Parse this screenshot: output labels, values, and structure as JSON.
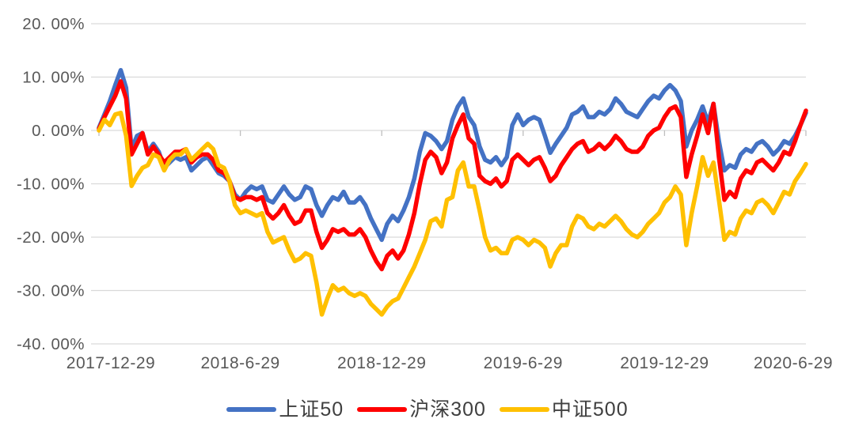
{
  "chart_data": {
    "type": "line",
    "title": "",
    "description": "Cumulative return comparison of three Chinese stock indices from 2017-12-29 to 2020-6-29, weekly sampled values in percent",
    "x_axis": {
      "tick_labels": [
        "2017-12-29",
        "2018-6-29",
        "2018-12-29",
        "2019-6-29",
        "2019-12-29",
        "2020-6-29"
      ],
      "sampling": "weekly points, week 0 = 2017-12-29 through week 130 = 2020-6-29"
    },
    "y_axis": {
      "min": -40,
      "max": 20,
      "step": 10,
      "unit": "%",
      "tick_labels": [
        "20. 00%",
        "10. 00%",
        "0. 00%",
        "-10. 00%",
        "-20. 00%",
        "-30. 00%",
        "-40. 00%"
      ]
    },
    "grid": "horizontal",
    "legend_position": "bottom",
    "colors": {
      "background": "#FFFFFF",
      "gridline": "#D9D9D9",
      "tick": "#BFBFBF",
      "axis_text": "#595959",
      "legend_text": "#3F3F3F"
    },
    "series": [
      {
        "name": "上证50",
        "color": "#4472C4",
        "values": [
          0.5,
          3,
          5.5,
          8.5,
          11.3,
          8,
          -3.5,
          -1,
          -0.5,
          -4,
          -2.5,
          -4,
          -7,
          -6,
          -5,
          -5.5,
          -5,
          -7.5,
          -6.5,
          -5.5,
          -5,
          -6.5,
          -8,
          -8.5,
          -9.5,
          -12,
          -13,
          -11.5,
          -10.5,
          -11,
          -10.5,
          -13,
          -13.5,
          -12,
          -10.5,
          -12,
          -13,
          -12.5,
          -10.5,
          -11,
          -14,
          -16,
          -14,
          -12.5,
          -13,
          -11.5,
          -13.5,
          -13.5,
          -12.5,
          -14,
          -16.5,
          -18.5,
          -20.5,
          -17.5,
          -16,
          -17,
          -15,
          -12.5,
          -9,
          -4,
          -0.5,
          -1,
          -2,
          -3.5,
          -2,
          2,
          4.5,
          6,
          2.5,
          1,
          -3,
          -5.5,
          -6,
          -5,
          -6.5,
          -5,
          1,
          3,
          1,
          2,
          2.5,
          2,
          -1,
          -4.2,
          -2.5,
          -1,
          0.5,
          3,
          3.5,
          4.5,
          2.5,
          2.5,
          3.5,
          3,
          4,
          6,
          5,
          3.5,
          3,
          2.5,
          4,
          5.5,
          6.5,
          6,
          7.5,
          8.5,
          7.5,
          5.5,
          -3,
          0,
          2,
          4.5,
          1.5,
          5,
          -2,
          -7.5,
          -6.5,
          -7,
          -4.5,
          -3.5,
          -4,
          -2.5,
          -2,
          -3,
          -4.5,
          -3.5,
          -2,
          -2.5,
          -1,
          1,
          3.3
        ]
      },
      {
        "name": "沪深300",
        "color": "#FF0000",
        "values": [
          0.3,
          2.5,
          4.5,
          6.5,
          9.2,
          6,
          -4.5,
          -2.5,
          -0.5,
          -4.5,
          -3,
          -4.5,
          -6,
          -5,
          -4,
          -4,
          -3.5,
          -6,
          -5,
          -4.5,
          -4.5,
          -5.5,
          -7.5,
          -8,
          -9.5,
          -12.5,
          -13,
          -12.5,
          -12.5,
          -13,
          -12.5,
          -15.5,
          -16.5,
          -15.5,
          -14,
          -16,
          -17.5,
          -17,
          -15,
          -15,
          -19,
          -22,
          -20.5,
          -18.5,
          -19,
          -18.5,
          -19.5,
          -19.5,
          -18.5,
          -20,
          -22.5,
          -24.5,
          -26,
          -23.5,
          -22.5,
          -24,
          -22.5,
          -19.5,
          -15.5,
          -10,
          -5.5,
          -4,
          -5,
          -8,
          -6,
          -1.5,
          1,
          3,
          -1.5,
          -2.5,
          -8.5,
          -9.5,
          -10,
          -9,
          -10.5,
          -9.5,
          -5.5,
          -4.5,
          -5.5,
          -6.5,
          -5.5,
          -5,
          -7,
          -9.5,
          -8.5,
          -6.5,
          -5,
          -3.5,
          -2.5,
          -2,
          -4,
          -3.5,
          -2.5,
          -3.5,
          -2.5,
          -1,
          -2,
          -3.5,
          -4,
          -4,
          -3,
          -1,
          0,
          0.5,
          2.5,
          4,
          4.5,
          2.5,
          -8.7,
          -4.5,
          -1,
          3,
          -0.5,
          5,
          -5,
          -13,
          -11.5,
          -12.5,
          -9,
          -7.5,
          -8,
          -6,
          -5.5,
          -6.5,
          -7.5,
          -6,
          -4,
          -4.5,
          -2,
          1,
          3.7
        ]
      },
      {
        "name": "中证500",
        "color": "#FFC000",
        "values": [
          0,
          2,
          1,
          3,
          3.3,
          -1,
          -10.4,
          -8.5,
          -7,
          -6.5,
          -4.5,
          -5,
          -7.5,
          -5.5,
          -4.5,
          -4.5,
          -3.5,
          -5.5,
          -4.5,
          -3.5,
          -2.5,
          -3.5,
          -6.5,
          -7,
          -9.5,
          -14,
          -15.5,
          -15,
          -15.5,
          -16,
          -15.5,
          -19,
          -21,
          -20.5,
          -20,
          -22.5,
          -24.5,
          -24,
          -23,
          -23.5,
          -28.5,
          -34.5,
          -31.5,
          -29,
          -30,
          -29.5,
          -30.5,
          -31,
          -30.5,
          -31,
          -32.5,
          -33.5,
          -34.5,
          -33,
          -32,
          -31.5,
          -29.5,
          -27.5,
          -25.5,
          -23,
          -20.5,
          -17,
          -16.5,
          -18,
          -13,
          -12.5,
          -7.5,
          -6,
          -10.5,
          -10.5,
          -15,
          -20,
          -22.5,
          -22,
          -23,
          -23,
          -20.5,
          -20,
          -20.5,
          -21.5,
          -20.5,
          -21,
          -22,
          -25.5,
          -23,
          -21.5,
          -21.5,
          -18,
          -16,
          -16.5,
          -18,
          -18.5,
          -17.5,
          -18,
          -17,
          -16,
          -17,
          -18.5,
          -19.5,
          -20,
          -19,
          -17.5,
          -16.5,
          -15.5,
          -13.5,
          -12.5,
          -10.5,
          -12,
          -21.5,
          -15.5,
          -10.5,
          -5,
          -8.5,
          -6,
          -13,
          -20.5,
          -19,
          -19.5,
          -16.5,
          -15,
          -15.5,
          -13.5,
          -13,
          -14,
          -15.5,
          -13.5,
          -11.5,
          -12,
          -9.5,
          -8,
          -6.3
        ]
      }
    ]
  }
}
